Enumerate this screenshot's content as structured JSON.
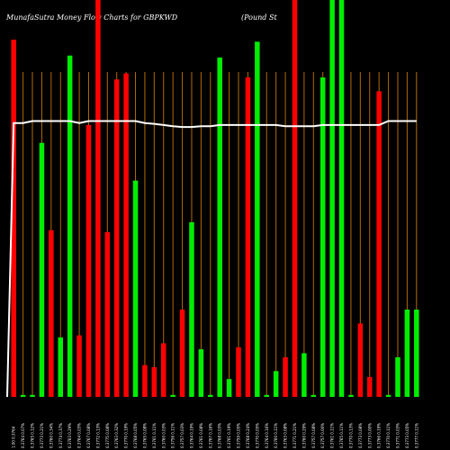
{
  "header": {
    "title": "MunafaSutra  Money Flow  Charts for GBPKWD",
    "subtitle": "(Pound St"
  },
  "colors": {
    "background": "#000000",
    "up": "#00ee00",
    "down": "#ff0000",
    "grid": "#b36b00",
    "line": "#ffffff",
    "text": "#ffffff"
  },
  "chart_data": {
    "type": "bar",
    "title": "MunafaSutra  Money Flow  Charts for GBPKWD",
    "subtitle": "(Pound St",
    "ylim": [
      0,
      100
    ],
    "grid": "vertical",
    "categories": [
      "1.00  0.3764",
      "0.3764 0.07%",
      "0.3765 0.12%",
      "0.3773 0.21%",
      "0.3760 0.34%",
      "0.3774 0.37%",
      "0.3763 0.29%",
      "0.3764 0.03%",
      "0.3767 0.08%",
      "0.3772 0.13%",
      "0.3775 0.08%",
      "0.3763 0.32%",
      "0.3770 0.19%",
      "0.3768 0.05%",
      "0.3765 0.08%",
      "0.3761 0.11%",
      "0.3760 0.03%",
      "0.3756 0.11%",
      "0.3757 0.03%",
      "0.3764 0.19%",
      "0.3761 0.08%",
      "0.3767 0.16%",
      "0.3768 0.03%",
      "0.3761 0.19%",
      "0.3759 0.05%",
      "0.3768 0.24%",
      "0.3770 0.05%",
      "0.3764 0.16%",
      "0.3760 0.11%",
      "0.3763 0.08%",
      "0.3771 0.21%",
      "0.3760 0.29%",
      "0.3757 0.08%",
      "0.3757 0.00%",
      "0.3761 0.11%",
      "0.3765 0.11%",
      "0.3770 0.13%",
      "0.3773 0.08%",
      "0.3773 0.00%",
      "0.3766 0.19%",
      "0.3770 0.11%",
      "0.3771 0.03%",
      "0.3773 0.05%",
      "0.3777 0.11%"
    ],
    "bars": [
      {
        "value": 90,
        "dir": "down"
      },
      {
        "value": 0.5,
        "dir": "up"
      },
      {
        "value": 0.5,
        "dir": "up"
      },
      {
        "value": 64,
        "dir": "up"
      },
      {
        "value": 42,
        "dir": "down"
      },
      {
        "value": 15,
        "dir": "up"
      },
      {
        "value": 86,
        "dir": "up"
      },
      {
        "value": 15.5,
        "dir": "down"
      },
      {
        "value": 68.5,
        "dir": "down"
      },
      {
        "value": 100,
        "dir": "down"
      },
      {
        "value": 41.5,
        "dir": "down"
      },
      {
        "value": 80,
        "dir": "down"
      },
      {
        "value": 81.5,
        "dir": "down"
      },
      {
        "value": 54.5,
        "dir": "up"
      },
      {
        "value": 8,
        "dir": "down"
      },
      {
        "value": 7.5,
        "dir": "down"
      },
      {
        "value": 13.5,
        "dir": "down"
      },
      {
        "value": 0.5,
        "dir": "up"
      },
      {
        "value": 22,
        "dir": "down"
      },
      {
        "value": 44,
        "dir": "up"
      },
      {
        "value": 12,
        "dir": "up"
      },
      {
        "value": 0.5,
        "dir": "up"
      },
      {
        "value": 85.5,
        "dir": "up"
      },
      {
        "value": 4.5,
        "dir": "up"
      },
      {
        "value": 12.5,
        "dir": "down"
      },
      {
        "value": 80.5,
        "dir": "down"
      },
      {
        "value": 89.5,
        "dir": "up"
      },
      {
        "value": 0.5,
        "dir": "up"
      },
      {
        "value": 6.5,
        "dir": "up"
      },
      {
        "value": 10,
        "dir": "down"
      },
      {
        "value": 100,
        "dir": "down"
      },
      {
        "value": 11,
        "dir": "up"
      },
      {
        "value": 0.5,
        "dir": "up"
      },
      {
        "value": 80.5,
        "dir": "up"
      },
      {
        "value": 100,
        "dir": "up"
      },
      {
        "value": 100,
        "dir": "up"
      },
      {
        "value": 0.5,
        "dir": "up"
      },
      {
        "value": 18.5,
        "dir": "down"
      },
      {
        "value": 5,
        "dir": "down"
      },
      {
        "value": 77,
        "dir": "down"
      },
      {
        "value": 0.5,
        "dir": "up"
      },
      {
        "value": 10,
        "dir": "up"
      },
      {
        "value": 22,
        "dir": "up"
      },
      {
        "value": 22,
        "dir": "up"
      }
    ],
    "line": [
      69,
      69,
      69.5,
      69.5,
      69.5,
      69.5,
      69.5,
      69,
      69.5,
      69.5,
      69.5,
      69.5,
      69.5,
      69.5,
      69,
      68.8,
      68.5,
      68.2,
      68,
      68,
      68.2,
      68.2,
      68.5,
      68.5,
      68.5,
      68.5,
      68.5,
      68.5,
      68.5,
      68.2,
      68.2,
      68.2,
      68.2,
      68.5,
      68.5,
      68.5,
      68.5,
      68.5,
      68.5,
      68.5,
      69.5,
      69.5,
      69.5,
      69.5
    ]
  }
}
